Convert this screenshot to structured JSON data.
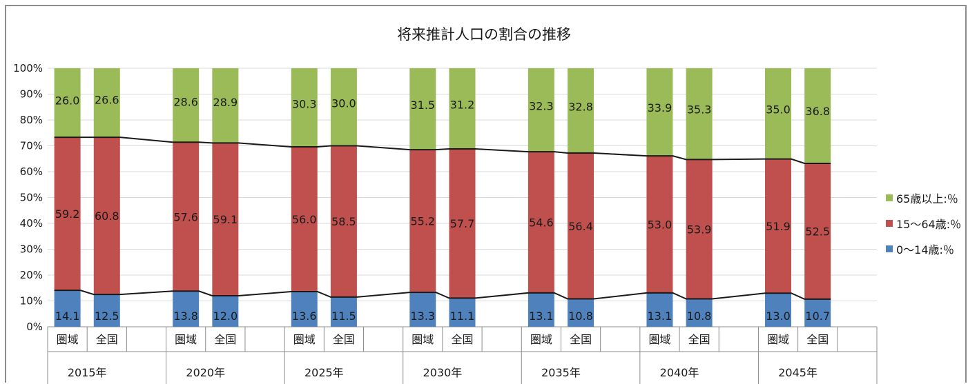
{
  "chart_data": {
    "type": "bar",
    "title": "将来推計人口の割合の推移",
    "ylim": [
      0,
      100
    ],
    "y_ticks": [
      "0%",
      "10%",
      "20%",
      "30%",
      "40%",
      "50%",
      "60%",
      "70%",
      "80%",
      "90%",
      "100%"
    ],
    "grid": true,
    "legend_position": "right",
    "groups": [
      "2015年",
      "2020年",
      "2025年",
      "2030年",
      "2035年",
      "2040年",
      "2045年"
    ],
    "subcategories": [
      "圏域",
      "全国"
    ],
    "series": [
      {
        "name": "0～14歳:％",
        "color": "#4f81bd",
        "values": [
          [
            14.1,
            12.5
          ],
          [
            13.8,
            12.0
          ],
          [
            13.6,
            11.5
          ],
          [
            13.3,
            11.1
          ],
          [
            13.1,
            10.8
          ],
          [
            13.1,
            10.8
          ],
          [
            13.0,
            10.7
          ]
        ]
      },
      {
        "name": "15～64歳:％",
        "color": "#c0504d",
        "values": [
          [
            59.2,
            60.8
          ],
          [
            57.6,
            59.1
          ],
          [
            56.0,
            58.5
          ],
          [
            55.2,
            57.7
          ],
          [
            54.6,
            56.4
          ],
          [
            53.0,
            53.9
          ],
          [
            51.9,
            52.5
          ]
        ]
      },
      {
        "name": "65歳以上:％",
        "color": "#9bbb59",
        "values": [
          [
            26.0,
            26.6
          ],
          [
            28.6,
            28.9
          ],
          [
            30.3,
            30.0
          ],
          [
            31.5,
            31.2
          ],
          [
            32.3,
            32.8
          ],
          [
            33.9,
            35.3
          ],
          [
            35.0,
            36.8
          ]
        ]
      }
    ],
    "series_lines": "black connector lines at the top of the 0～14 and 15～64 segments"
  }
}
